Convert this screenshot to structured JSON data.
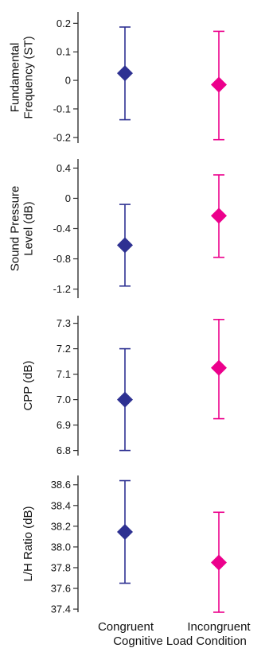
{
  "chart_data": [
    {
      "type": "scatter",
      "title": "",
      "ylabel_lines": [
        "Fundamental",
        "Frequency (ST)"
      ],
      "ylim": [
        -0.22,
        0.24
      ],
      "yticks": [
        0.2,
        0.1,
        0,
        -0.1,
        -0.2
      ],
      "ytick_labels": [
        "0.2",
        "0.1",
        "0",
        "-0.1",
        "-0.2"
      ],
      "categories": [
        "Congruent",
        "Incongruent"
      ],
      "series": [
        {
          "category": "Congruent",
          "mean": 0.025,
          "upper": 0.187,
          "lower": -0.138,
          "color": "#2e3192"
        },
        {
          "category": "Incongruent",
          "mean": -0.015,
          "upper": 0.172,
          "lower": -0.208,
          "color": "#ec008c"
        }
      ]
    },
    {
      "type": "scatter",
      "title": "",
      "ylabel_lines": [
        "Sound Pressure",
        "Level (dB)"
      ],
      "ylim": [
        -1.32,
        0.52
      ],
      "yticks": [
        0.4,
        0,
        -0.4,
        -0.8,
        -1.2
      ],
      "ytick_labels": [
        "0.4",
        "0",
        "-0.4",
        "-0.8",
        "-1.2"
      ],
      "categories": [
        "Congruent",
        "Incongruent"
      ],
      "series": [
        {
          "category": "Congruent",
          "mean": -0.62,
          "upper": -0.08,
          "lower": -1.16,
          "color": "#2e3192"
        },
        {
          "category": "Incongruent",
          "mean": -0.23,
          "upper": 0.31,
          "lower": -0.78,
          "color": "#ec008c"
        }
      ]
    },
    {
      "type": "scatter",
      "title": "",
      "ylabel_lines": [
        "CPP (dB)"
      ],
      "ylim": [
        6.78,
        7.33
      ],
      "yticks": [
        7.3,
        7.2,
        7.1,
        7.0,
        6.9,
        6.8
      ],
      "ytick_labels": [
        "7.3",
        "7.2",
        "7.1",
        "7.0",
        "6.9",
        "6.8"
      ],
      "categories": [
        "Congruent",
        "Incongruent"
      ],
      "series": [
        {
          "category": "Congruent",
          "mean": 7.0,
          "upper": 7.2,
          "lower": 6.8,
          "color": "#2e3192"
        },
        {
          "category": "Incongruent",
          "mean": 7.125,
          "upper": 7.315,
          "lower": 6.925,
          "color": "#ec008c"
        }
      ]
    },
    {
      "type": "scatter",
      "title": "",
      "ylabel_lines": [
        "L/H Ratio (dB)"
      ],
      "ylim": [
        37.37,
        38.69
      ],
      "yticks": [
        38.6,
        38.4,
        38.2,
        38.0,
        37.8,
        37.6,
        37.4
      ],
      "ytick_labels": [
        "38.6",
        "38.4",
        "38.2",
        "38.0",
        "37.8",
        "37.6",
        "37.4"
      ],
      "categories": [
        "Congruent",
        "Incongruent"
      ],
      "series": [
        {
          "category": "Congruent",
          "mean": 38.145,
          "upper": 38.64,
          "lower": 37.65,
          "color": "#2e3192"
        },
        {
          "category": "Incongruent",
          "mean": 37.85,
          "upper": 38.335,
          "lower": 37.37,
          "color": "#ec008c"
        }
      ]
    }
  ],
  "x_categories": [
    "Congruent",
    "Incongruent"
  ],
  "xlabel": "Cognitive Load Condition",
  "colors": {
    "congruent": "#2e3192",
    "incongruent": "#ec008c",
    "axis": "#333333"
  }
}
